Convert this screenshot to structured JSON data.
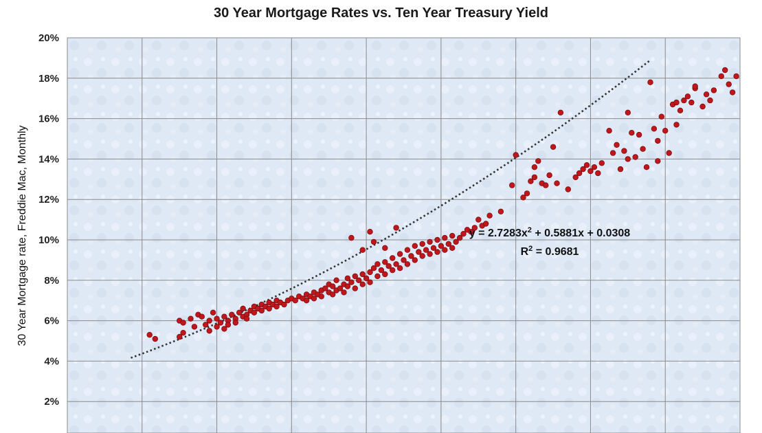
{
  "chart_data": {
    "type": "scatter",
    "title": "30 Year Mortgage Rates vs. Ten Year Treasury Yield",
    "xlabel": "",
    "ylabel": "30 Year Mortgage rate, Freddie Mac, Monthly",
    "ylim": [
      0.0,
      0.2
    ],
    "xlim": [
      0.0,
      0.18
    ],
    "y_ticks": [
      "2%",
      "4%",
      "6%",
      "8%",
      "10%",
      "12%",
      "14%",
      "16%",
      "18%",
      "20%"
    ],
    "grid": true,
    "legend": "none",
    "marker_color": "#c0171c",
    "trendline": {
      "type": "polynomial",
      "order": 2,
      "coefficients": [
        2.7283,
        0.5881,
        0.0308
      ],
      "x_range": [
        0.017,
        0.156
      ],
      "style": "dotted",
      "color": "#333333"
    },
    "annotations": {
      "equation_parts": [
        "y = 2.7283x",
        "2",
        " + 0.5881x + 0.0308"
      ],
      "r_squared_parts": [
        "R",
        "2",
        " = 0.9681"
      ]
    },
    "series": [
      {
        "points": [
          [
            0.022,
            0.053
          ],
          [
            0.0235,
            0.051
          ],
          [
            0.03,
            0.06
          ],
          [
            0.031,
            0.059
          ],
          [
            0.03,
            0.052
          ],
          [
            0.031,
            0.054
          ],
          [
            0.033,
            0.061
          ],
          [
            0.034,
            0.057
          ],
          [
            0.035,
            0.063
          ],
          [
            0.036,
            0.062
          ],
          [
            0.037,
            0.058
          ],
          [
            0.038,
            0.06
          ],
          [
            0.038,
            0.055
          ],
          [
            0.039,
            0.064
          ],
          [
            0.04,
            0.061
          ],
          [
            0.04,
            0.057
          ],
          [
            0.041,
            0.059
          ],
          [
            0.042,
            0.062
          ],
          [
            0.042,
            0.056
          ],
          [
            0.043,
            0.06
          ],
          [
            0.043,
            0.058
          ],
          [
            0.044,
            0.063
          ],
          [
            0.045,
            0.061
          ],
          [
            0.045,
            0.059
          ],
          [
            0.046,
            0.064
          ],
          [
            0.047,
            0.062
          ],
          [
            0.047,
            0.066
          ],
          [
            0.048,
            0.063
          ],
          [
            0.048,
            0.061
          ],
          [
            0.049,
            0.065
          ],
          [
            0.05,
            0.067
          ],
          [
            0.05,
            0.064
          ],
          [
            0.051,
            0.066
          ],
          [
            0.052,
            0.068
          ],
          [
            0.052,
            0.065
          ],
          [
            0.053,
            0.067
          ],
          [
            0.054,
            0.069
          ],
          [
            0.054,
            0.066
          ],
          [
            0.055,
            0.068
          ],
          [
            0.056,
            0.07
          ],
          [
            0.056,
            0.067
          ],
          [
            0.057,
            0.069
          ],
          [
            0.058,
            0.068
          ],
          [
            0.059,
            0.07
          ],
          [
            0.06,
            0.071
          ],
          [
            0.061,
            0.07
          ],
          [
            0.062,
            0.072
          ],
          [
            0.063,
            0.071
          ],
          [
            0.064,
            0.073
          ],
          [
            0.064,
            0.07
          ],
          [
            0.065,
            0.072
          ],
          [
            0.066,
            0.074
          ],
          [
            0.066,
            0.071
          ],
          [
            0.067,
            0.073
          ],
          [
            0.068,
            0.075
          ],
          [
            0.068,
            0.072
          ],
          [
            0.069,
            0.076
          ],
          [
            0.07,
            0.074
          ],
          [
            0.07,
            0.078
          ],
          [
            0.071,
            0.073
          ],
          [
            0.071,
            0.077
          ],
          [
            0.072,
            0.075
          ],
          [
            0.072,
            0.08
          ],
          [
            0.073,
            0.076
          ],
          [
            0.074,
            0.078
          ],
          [
            0.074,
            0.074
          ],
          [
            0.075,
            0.077
          ],
          [
            0.075,
            0.081
          ],
          [
            0.076,
            0.079
          ],
          [
            0.077,
            0.076
          ],
          [
            0.077,
            0.082
          ],
          [
            0.078,
            0.08
          ],
          [
            0.079,
            0.078
          ],
          [
            0.079,
            0.083
          ],
          [
            0.08,
            0.081
          ],
          [
            0.081,
            0.084
          ],
          [
            0.081,
            0.079
          ],
          [
            0.082,
            0.086
          ],
          [
            0.083,
            0.082
          ],
          [
            0.083,
            0.088
          ],
          [
            0.084,
            0.085
          ],
          [
            0.085,
            0.083
          ],
          [
            0.085,
            0.089
          ],
          [
            0.086,
            0.087
          ],
          [
            0.087,
            0.085
          ],
          [
            0.087,
            0.091
          ],
          [
            0.088,
            0.088
          ],
          [
            0.089,
            0.086
          ],
          [
            0.089,
            0.093
          ],
          [
            0.09,
            0.09
          ],
          [
            0.091,
            0.088
          ],
          [
            0.091,
            0.095
          ],
          [
            0.092,
            0.092
          ],
          [
            0.093,
            0.09
          ],
          [
            0.093,
            0.097
          ],
          [
            0.094,
            0.094
          ],
          [
            0.095,
            0.092
          ],
          [
            0.095,
            0.098
          ],
          [
            0.096,
            0.095
          ],
          [
            0.097,
            0.093
          ],
          [
            0.097,
            0.099
          ],
          [
            0.098,
            0.096
          ],
          [
            0.099,
            0.094
          ],
          [
            0.099,
            0.1
          ],
          [
            0.1,
            0.097
          ],
          [
            0.101,
            0.095
          ],
          [
            0.101,
            0.101
          ],
          [
            0.102,
            0.098
          ],
          [
            0.103,
            0.096
          ],
          [
            0.103,
            0.102
          ],
          [
            0.104,
            0.099
          ],
          [
            0.105,
            0.101
          ],
          [
            0.106,
            0.103
          ],
          [
            0.107,
            0.105
          ],
          [
            0.108,
            0.104
          ],
          [
            0.109,
            0.106
          ],
          [
            0.11,
            0.11
          ],
          [
            0.111,
            0.107
          ],
          [
            0.112,
            0.108
          ],
          [
            0.113,
            0.112
          ],
          [
            0.076,
            0.101
          ],
          [
            0.081,
            0.104
          ],
          [
            0.082,
            0.099
          ],
          [
            0.088,
            0.106
          ],
          [
            0.085,
            0.096
          ],
          [
            0.079,
            0.095
          ],
          [
            0.116,
            0.114
          ],
          [
            0.119,
            0.127
          ],
          [
            0.12,
            0.142
          ],
          [
            0.122,
            0.121
          ],
          [
            0.123,
            0.123
          ],
          [
            0.124,
            0.129
          ],
          [
            0.125,
            0.131
          ],
          [
            0.125,
            0.136
          ],
          [
            0.126,
            0.139
          ],
          [
            0.127,
            0.128
          ],
          [
            0.128,
            0.127
          ],
          [
            0.129,
            0.132
          ],
          [
            0.13,
            0.146
          ],
          [
            0.131,
            0.128
          ],
          [
            0.132,
            0.163
          ],
          [
            0.134,
            0.125
          ],
          [
            0.136,
            0.131
          ],
          [
            0.137,
            0.133
          ],
          [
            0.138,
            0.135
          ],
          [
            0.139,
            0.137
          ],
          [
            0.14,
            0.134
          ],
          [
            0.141,
            0.136
          ],
          [
            0.142,
            0.133
          ],
          [
            0.143,
            0.138
          ],
          [
            0.145,
            0.154
          ],
          [
            0.146,
            0.143
          ],
          [
            0.147,
            0.147
          ],
          [
            0.148,
            0.135
          ],
          [
            0.149,
            0.144
          ],
          [
            0.15,
            0.14
          ],
          [
            0.15,
            0.163
          ],
          [
            0.151,
            0.153
          ],
          [
            0.152,
            0.141
          ],
          [
            0.153,
            0.152
          ],
          [
            0.154,
            0.145
          ],
          [
            0.155,
            0.136
          ],
          [
            0.156,
            0.178
          ],
          [
            0.157,
            0.155
          ],
          [
            0.158,
            0.149
          ],
          [
            0.159,
            0.161
          ],
          [
            0.16,
            0.154
          ],
          [
            0.161,
            0.143
          ],
          [
            0.162,
            0.167
          ],
          [
            0.163,
            0.157
          ],
          [
            0.164,
            0.164
          ],
          [
            0.165,
            0.169
          ],
          [
            0.166,
            0.171
          ],
          [
            0.167,
            0.168
          ],
          [
            0.168,
            0.175
          ],
          [
            0.17,
            0.166
          ],
          [
            0.171,
            0.172
          ],
          [
            0.172,
            0.169
          ],
          [
            0.173,
            0.174
          ],
          [
            0.175,
            0.181
          ],
          [
            0.176,
            0.184
          ],
          [
            0.177,
            0.177
          ],
          [
            0.178,
            0.173
          ],
          [
            0.179,
            0.181
          ],
          [
            0.158,
            0.139
          ],
          [
            0.163,
            0.168
          ],
          [
            0.168,
            0.176
          ]
        ]
      }
    ]
  }
}
